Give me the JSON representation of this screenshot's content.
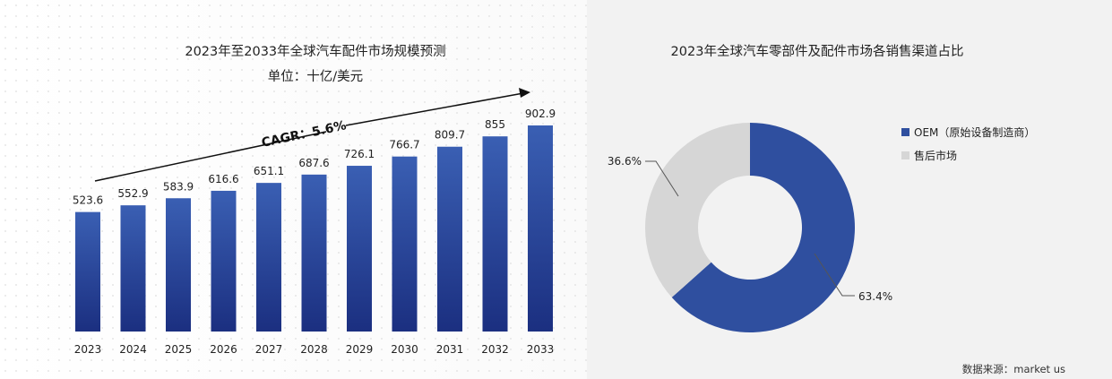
{
  "bar_chart_title": "2023年至2033年全球汽车配件市场规模预测",
  "bar_chart_subtitle": "单位：十亿/美元",
  "cagr_label": "CAGR：5.6%",
  "donut_chart_title": "2023年全球汽车零部件及配件市场各销售渠道占比",
  "source_note": "数据来源：market us",
  "colors": {
    "bar_top": "#3a5fb3",
    "bar_bottom": "#1b2f80",
    "oem": "#2f4f9f",
    "aftermarket": "#d6d6d6"
  },
  "chart_data": [
    {
      "type": "bar",
      "title": "2023年至2033年全球汽车配件市场规模预测",
      "subtitle": "单位：十亿/美元",
      "categories": [
        "2023",
        "2024",
        "2025",
        "2026",
        "2027",
        "2028",
        "2029",
        "2030",
        "2031",
        "2032",
        "2033"
      ],
      "values": [
        523.6,
        552.9,
        583.9,
        616.6,
        651.1,
        687.6,
        726.1,
        766.7,
        809.7,
        855,
        902.9
      ],
      "value_labels": [
        "523.6",
        "552.9",
        "583.9",
        "616.6",
        "651.1",
        "687.6",
        "726.1",
        "766.7",
        "809.7",
        "855",
        "902.9"
      ],
      "annotation": "CAGR：5.6%",
      "grid": false
    },
    {
      "type": "pie",
      "title": "2023年全球汽车零部件及配件市场各销售渠道占比",
      "labels": [
        "OEM（原始设备制造商）",
        "售后市场"
      ],
      "values": [
        63.4,
        36.6
      ],
      "value_labels": [
        "63.4%",
        "36.6%"
      ],
      "legend_position": "right"
    }
  ]
}
